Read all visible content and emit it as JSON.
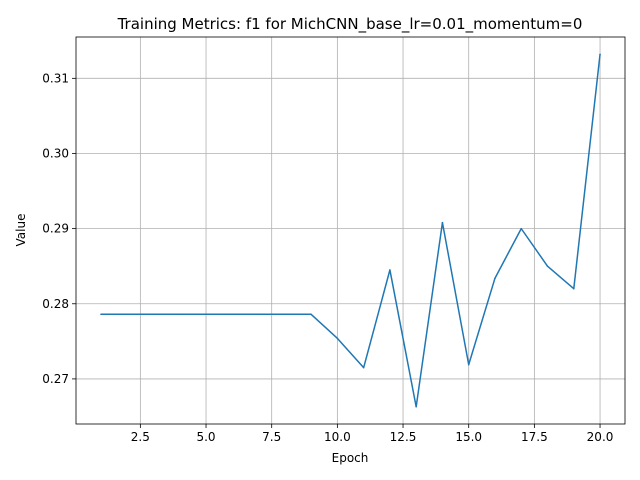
{
  "chart_data": {
    "type": "line",
    "title": "Training Metrics: f1 for MichCNN_base_lr=0.01_momentum=0",
    "xlabel": "Epoch",
    "ylabel": "Value",
    "x": [
      1,
      2,
      3,
      4,
      5,
      6,
      7,
      8,
      9,
      10,
      11,
      12,
      13,
      14,
      15,
      16,
      17,
      18,
      19,
      20
    ],
    "series": [
      {
        "color": "#1f77b4",
        "values": [
          0.2786,
          0.2786,
          0.2786,
          0.2786,
          0.2786,
          0.2786,
          0.2786,
          0.2786,
          0.2786,
          0.2754,
          0.2715,
          0.2845,
          0.2663,
          0.2908,
          0.2719,
          0.2834,
          0.29,
          0.285,
          0.282,
          0.3132
        ]
      }
    ],
    "xlim": [
      0.05,
      20.95
    ],
    "ylim": [
      0.264,
      0.3155
    ],
    "xticks": [
      2.5,
      5.0,
      7.5,
      10.0,
      12.5,
      15.0,
      17.5,
      20.0
    ],
    "xtick_labels": [
      "2.5",
      "5.0",
      "7.5",
      "10.0",
      "12.5",
      "15.0",
      "17.5",
      "20.0"
    ],
    "yticks": [
      0.27,
      0.28,
      0.29,
      0.3,
      0.31
    ],
    "ytick_labels": [
      "0.27",
      "0.28",
      "0.29",
      "0.30",
      "0.31"
    ],
    "grid": true
  }
}
